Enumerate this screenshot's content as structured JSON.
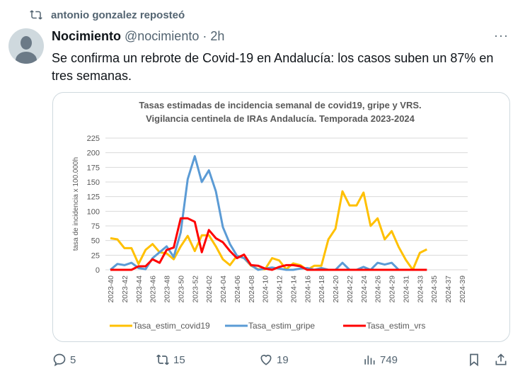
{
  "repost": {
    "label": "antonio gonzalez reposteó"
  },
  "tweet": {
    "author_name": "Nocimiento",
    "handle": "@nocimiento",
    "separator": "·",
    "time": "2h",
    "more": "···",
    "text": "Se confirma un rebrote de Covid-19 en Andalucía: los casos suben un 87% en tres semanas."
  },
  "actions": {
    "replies": "5",
    "reposts": "15",
    "likes": "19",
    "views": "749"
  },
  "chart_data": {
    "type": "line",
    "title": [
      "Tasas estimadas de incidencia semanal de covid19, gripe y VRS.",
      "Vigilancia centinela de IRAs Andalucía. Temporada 2023-2024"
    ],
    "xlabel": "",
    "ylabel": "tasa de incidencia x 100.000h",
    "ylim": [
      0,
      225
    ],
    "yticks": [
      0,
      25,
      50,
      75,
      100,
      125,
      150,
      175,
      200,
      225
    ],
    "grid": true,
    "legend": "bottom",
    "x_tick_labels": [
      "2023-40",
      "2023-42",
      "2023-44",
      "2023-46",
      "2023-48",
      "2023-50",
      "2023-52",
      "2024-02",
      "2024-04",
      "2024-06",
      "2024-08",
      "2024-10",
      "2024-12",
      "2024-14",
      "2024-16",
      "2024-18",
      "2024-20",
      "2024-22",
      "2024-24",
      "2024-26",
      "2024-29",
      "2024-31",
      "2024-33",
      "2024-35",
      "2024-37",
      "2024-39"
    ],
    "series": [
      {
        "name": "Tasa_estim_covid19",
        "color": "#FFC000",
        "values": [
          54,
          52,
          37,
          37,
          10,
          34,
          44,
          30,
          28,
          18,
          40,
          58,
          32,
          59,
          59,
          40,
          18,
          8,
          24,
          20,
          7,
          1,
          1,
          20,
          16,
          1,
          11,
          8,
          0,
          7,
          7,
          52,
          70,
          134,
          110,
          110,
          132,
          75,
          88,
          52,
          66,
          39,
          17,
          0,
          29,
          35
        ]
      },
      {
        "name": "Tasa_estim_gripe",
        "color": "#5B9BD5",
        "values": [
          0,
          10,
          8,
          12,
          3,
          1,
          20,
          30,
          40,
          22,
          64,
          155,
          194,
          150,
          170,
          134,
          73,
          44,
          24,
          20,
          8,
          0,
          2,
          4,
          2,
          0,
          0,
          2,
          3,
          0,
          3,
          0,
          0,
          12,
          0,
          0,
          5,
          0,
          12,
          9,
          12,
          0,
          0,
          0,
          0,
          0
        ]
      },
      {
        "name": "Tasa_estim_vrs",
        "color": "#FF0000",
        "values": [
          0,
          0,
          0,
          0,
          6,
          6,
          18,
          12,
          34,
          38,
          88,
          88,
          82,
          30,
          68,
          54,
          47,
          32,
          20,
          26,
          8,
          7,
          2,
          0,
          5,
          8,
          8,
          6,
          0,
          0,
          0,
          0,
          0,
          0,
          0,
          0,
          0,
          0,
          0,
          0,
          0,
          0,
          0,
          0,
          0,
          0
        ]
      }
    ]
  }
}
